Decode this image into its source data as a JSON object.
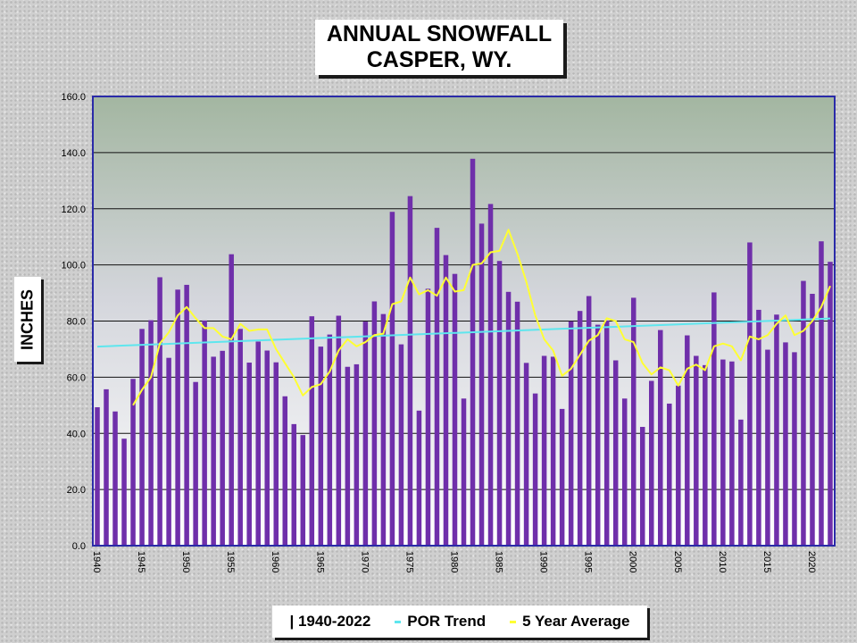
{
  "chart_data": {
    "type": "bar",
    "title_lines": [
      "ANNUAL SNOWFALL",
      "CASPER, WY."
    ],
    "ylabel": "INCHES",
    "ylim": [
      0,
      160
    ],
    "yticks": [
      "0.0",
      "20.0",
      "40.0",
      "60.0",
      "80.0",
      "100.0",
      "120.0",
      "140.0",
      "160.0"
    ],
    "x_start": 1940,
    "x_end": 2022,
    "xtick_years": [
      1940,
      1945,
      1950,
      1955,
      1960,
      1965,
      1970,
      1975,
      1980,
      1985,
      1990,
      1995,
      2000,
      2005,
      2010,
      2015,
      2020
    ],
    "grid": true,
    "legend_position": "bottom",
    "series": [
      {
        "name": "| 1940-2022",
        "kind": "bar",
        "color": "#6f2faa",
        "values": [
          49.3,
          55.7,
          47.8,
          38.1,
          59.4,
          77.2,
          80.3,
          95.6,
          66.9,
          91.2,
          92.9,
          58.3,
          80.2,
          67.3,
          69.4,
          103.8,
          77.2,
          65.2,
          72.7,
          69.5,
          65.3,
          53.2,
          43.3,
          39.4,
          81.7,
          70.9,
          75.2,
          81.9,
          63.7,
          64.6,
          79.8,
          87.0,
          82.5,
          118.9,
          71.7,
          124.5,
          48.1,
          91.5,
          113.2,
          103.5,
          96.8,
          52.4,
          137.8,
          114.7,
          121.7,
          101.4,
          90.4,
          86.9,
          65.1,
          54.2,
          67.6,
          67.3,
          48.7,
          79.9,
          83.6,
          88.9,
          78.7,
          80.2,
          66.0,
          52.4,
          88.3,
          42.3,
          58.7,
          76.8,
          50.6,
          57.0,
          74.9,
          67.6,
          64.3,
          90.2,
          66.3,
          65.6,
          44.9,
          108.0,
          84.0,
          69.8,
          82.3,
          72.4,
          68.9,
          94.3,
          89.7,
          108.4,
          101.1
        ]
      },
      {
        "name": "POR Trend",
        "kind": "line",
        "color": "#5ee6ee",
        "start": [
          1940,
          70.9
        ],
        "end": [
          2022,
          80.9
        ]
      },
      {
        "name": "5 Year Average",
        "kind": "line",
        "color": "#ffff33",
        "x_start": 1944,
        "values": [
          50.0,
          55.5,
          60.0,
          72.0,
          76.0,
          82.0,
          85.0,
          81.0,
          77.5,
          77.5,
          74.5,
          73.5,
          79.0,
          76.5,
          77.0,
          77.0,
          70.0,
          65.0,
          60.0,
          53.5,
          56.5,
          57.5,
          62.0,
          69.5,
          73.5,
          71.0,
          72.5,
          75.0,
          75.5,
          86.0,
          87.0,
          95.5,
          89.5,
          91.0,
          89.0,
          95.5,
          90.5,
          91.0,
          100.0,
          100.5,
          104.5,
          105.0,
          112.5,
          104.0,
          94.0,
          82.0,
          73.5,
          69.5,
          60.5,
          63.0,
          68.0,
          73.0,
          75.0,
          81.0,
          80.0,
          73.5,
          72.5,
          65.0,
          61.0,
          63.5,
          62.5,
          57.0,
          63.0,
          64.5,
          62.5,
          71.0,
          72.0,
          71.0,
          66.0,
          74.5,
          73.5,
          75.0,
          79.0,
          82.0,
          75.0,
          76.5,
          80.0,
          85.0,
          92.5
        ]
      }
    ]
  }
}
